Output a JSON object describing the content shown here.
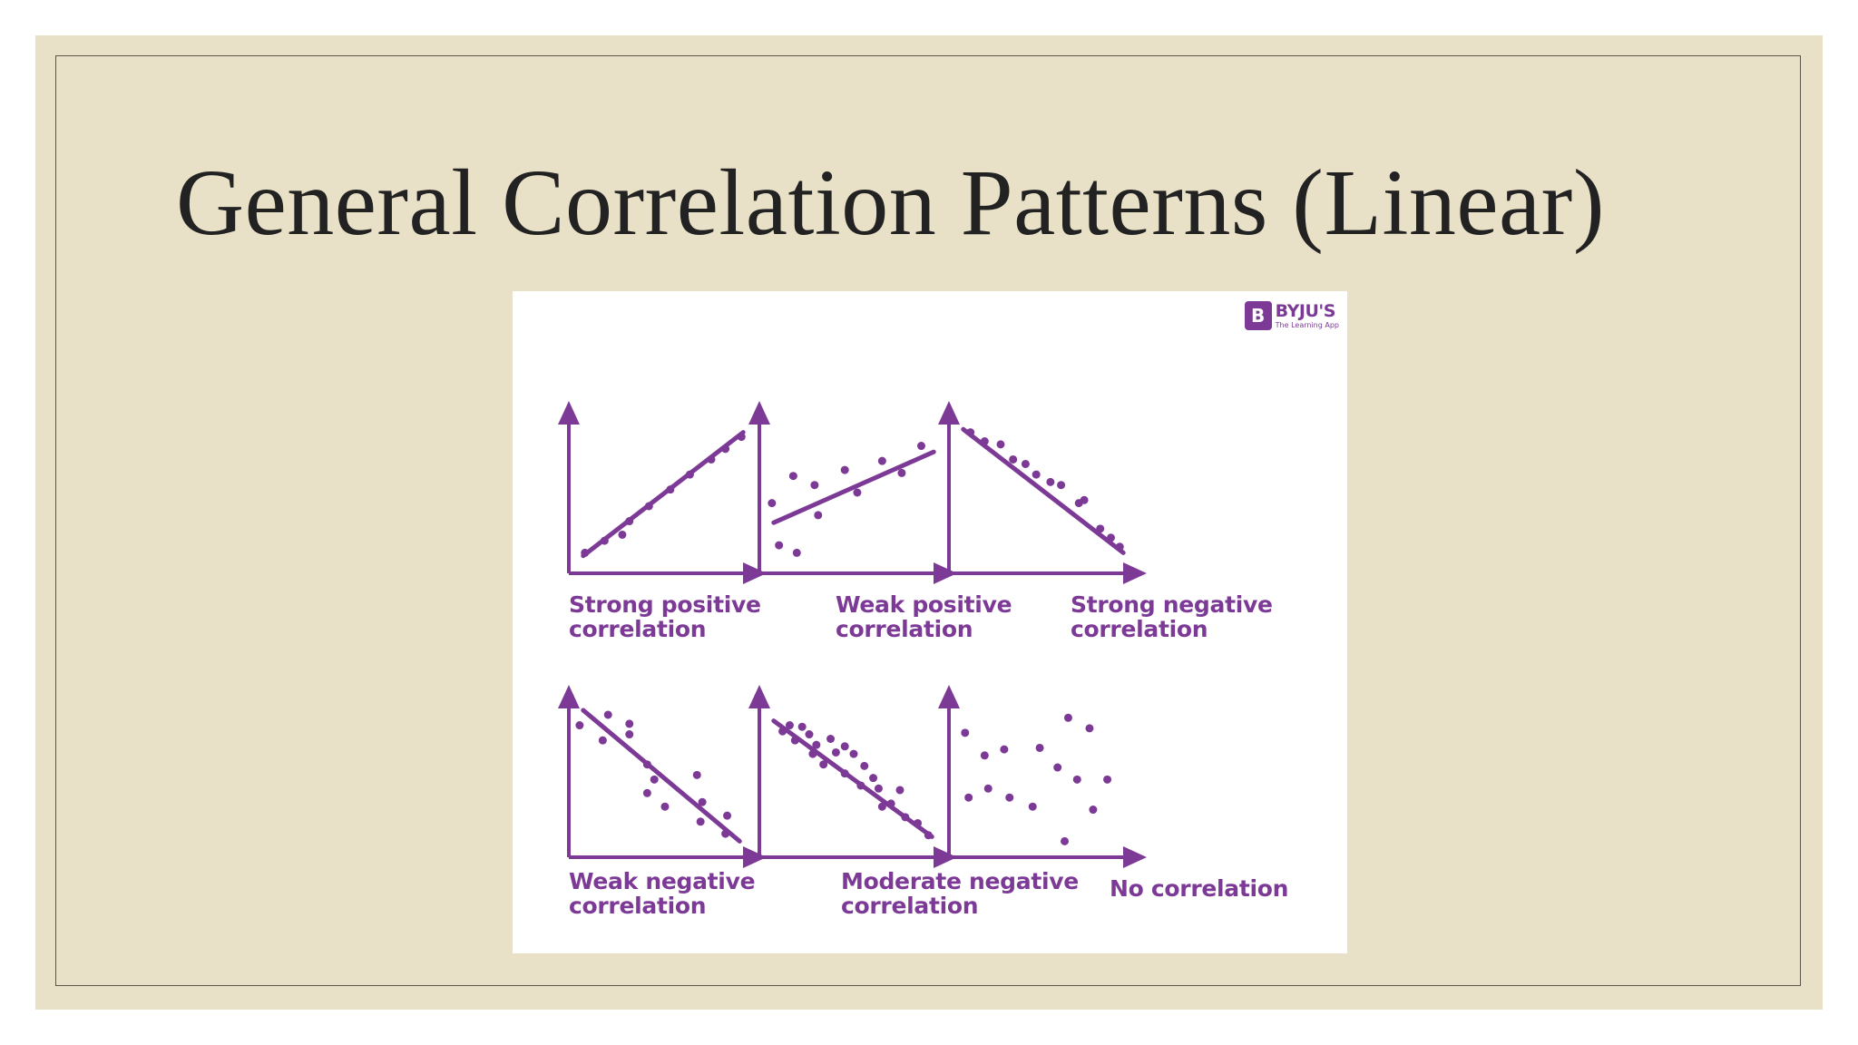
{
  "slide": {
    "title": "General Correlation Patterns (Linear)",
    "background_color": "#e8e0c7",
    "accent_color": "#7c3a96"
  },
  "logo": {
    "mark": "B",
    "name": "BYJU'S",
    "tagline": "The Learning App"
  },
  "panels": [
    {
      "label": "Strong positive\ncorrelation",
      "line": [
        [
          0.05,
          0.08
        ],
        [
          0.95,
          0.9
        ]
      ],
      "points": [
        [
          0.06,
          0.1
        ],
        [
          0.17,
          0.18
        ],
        [
          0.27,
          0.22
        ],
        [
          0.31,
          0.31
        ],
        [
          0.42,
          0.41
        ],
        [
          0.54,
          0.52
        ],
        [
          0.65,
          0.62
        ],
        [
          0.77,
          0.72
        ],
        [
          0.85,
          0.79
        ],
        [
          0.94,
          0.87
        ]
      ]
    },
    {
      "label": "Weak positive\ncorrelation",
      "line": [
        [
          0.05,
          0.3
        ],
        [
          0.95,
          0.77
        ]
      ],
      "points": [
        [
          0.04,
          0.43
        ],
        [
          0.16,
          0.61
        ],
        [
          0.08,
          0.15
        ],
        [
          0.18,
          0.1
        ],
        [
          0.28,
          0.55
        ],
        [
          0.3,
          0.35
        ],
        [
          0.45,
          0.65
        ],
        [
          0.52,
          0.5
        ],
        [
          0.66,
          0.71
        ],
        [
          0.77,
          0.63
        ],
        [
          0.88,
          0.81
        ]
      ]
    },
    {
      "label": "Strong negative\ncorrelation",
      "line": [
        [
          0.05,
          0.92
        ],
        [
          0.95,
          0.1
        ]
      ],
      "points": [
        [
          0.09,
          0.9
        ],
        [
          0.17,
          0.84
        ],
        [
          0.26,
          0.82
        ],
        [
          0.33,
          0.72
        ],
        [
          0.4,
          0.69
        ],
        [
          0.46,
          0.62
        ],
        [
          0.54,
          0.57
        ],
        [
          0.6,
          0.55
        ],
        [
          0.7,
          0.43
        ],
        [
          0.73,
          0.45
        ],
        [
          0.82,
          0.26
        ],
        [
          0.88,
          0.2
        ],
        [
          0.93,
          0.14
        ]
      ]
    },
    {
      "label": "Weak negative\ncorrelation",
      "line": [
        [
          0.05,
          0.94
        ],
        [
          0.93,
          0.07
        ]
      ],
      "points": [
        [
          0.03,
          0.84
        ],
        [
          0.16,
          0.74
        ],
        [
          0.19,
          0.91
        ],
        [
          0.31,
          0.85
        ],
        [
          0.31,
          0.78
        ],
        [
          0.41,
          0.58
        ],
        [
          0.45,
          0.48
        ],
        [
          0.41,
          0.39
        ],
        [
          0.51,
          0.3
        ],
        [
          0.69,
          0.51
        ],
        [
          0.72,
          0.33
        ],
        [
          0.71,
          0.2
        ],
        [
          0.86,
          0.24
        ],
        [
          0.85,
          0.12
        ]
      ]
    },
    {
      "label": "Moderate negative\ncorrelation",
      "line": [
        [
          0.05,
          0.87
        ],
        [
          0.94,
          0.1
        ]
      ],
      "points": [
        [
          0.1,
          0.8
        ],
        [
          0.14,
          0.84
        ],
        [
          0.17,
          0.74
        ],
        [
          0.21,
          0.83
        ],
        [
          0.25,
          0.78
        ],
        [
          0.27,
          0.65
        ],
        [
          0.29,
          0.71
        ],
        [
          0.33,
          0.58
        ],
        [
          0.37,
          0.75
        ],
        [
          0.4,
          0.66
        ],
        [
          0.45,
          0.7
        ],
        [
          0.45,
          0.52
        ],
        [
          0.5,
          0.65
        ],
        [
          0.54,
          0.44
        ],
        [
          0.56,
          0.57
        ],
        [
          0.61,
          0.49
        ],
        [
          0.64,
          0.42
        ],
        [
          0.66,
          0.3
        ],
        [
          0.71,
          0.32
        ],
        [
          0.76,
          0.41
        ],
        [
          0.79,
          0.23
        ],
        [
          0.86,
          0.19
        ],
        [
          0.92,
          0.11
        ]
      ]
    },
    {
      "label": "No correlation",
      "line": null,
      "points": [
        [
          0.06,
          0.79
        ],
        [
          0.17,
          0.64
        ],
        [
          0.28,
          0.68
        ],
        [
          0.08,
          0.36
        ],
        [
          0.19,
          0.42
        ],
        [
          0.31,
          0.36
        ],
        [
          0.44,
          0.3
        ],
        [
          0.48,
          0.69
        ],
        [
          0.58,
          0.56
        ],
        [
          0.64,
          0.89
        ],
        [
          0.69,
          0.48
        ],
        [
          0.62,
          0.07
        ],
        [
          0.76,
          0.82
        ],
        [
          0.78,
          0.28
        ],
        [
          0.86,
          0.48
        ]
      ]
    }
  ]
}
